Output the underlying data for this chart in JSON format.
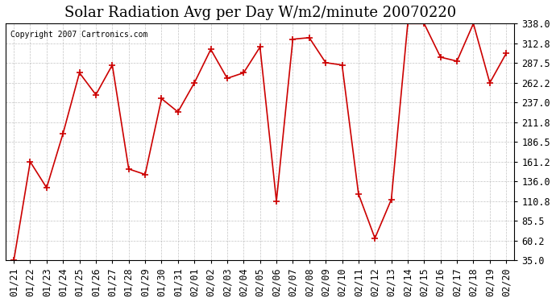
{
  "title": "Solar Radiation Avg per Day W/m2/minute 20070220",
  "copyright": "Copyright 2007 Cartronics.com",
  "x_labels": [
    "01/21",
    "01/22",
    "01/23",
    "01/24",
    "01/25",
    "01/26",
    "01/27",
    "01/28",
    "01/29",
    "01/30",
    "01/31",
    "02/01",
    "02/02",
    "02/03",
    "02/04",
    "02/05",
    "02/06",
    "02/07",
    "02/08",
    "02/09",
    "02/10",
    "02/11",
    "02/12",
    "02/13",
    "02/14",
    "02/15",
    "02/16",
    "02/17",
    "02/18",
    "02/19",
    "02/20"
  ],
  "y_values": [
    35.0,
    161.2,
    128.0,
    197.5,
    275.0,
    247.0,
    285.0,
    152.0,
    145.0,
    242.0,
    225.0,
    262.2,
    305.0,
    268.0,
    275.0,
    308.0,
    110.8,
    318.0,
    320.0,
    288.0,
    285.0,
    120.0,
    63.5,
    113.0,
    338.0,
    338.0,
    295.0,
    290.0,
    338.0,
    262.2,
    300.0
  ],
  "y_ticks": [
    35.0,
    60.2,
    85.5,
    110.8,
    136.0,
    161.2,
    186.5,
    211.8,
    237.0,
    262.2,
    287.5,
    312.8,
    338.0
  ],
  "line_color": "#cc0000",
  "marker": "+",
  "marker_size": 6,
  "background_color": "#ffffff",
  "plot_bg_color": "#ffffff",
  "grid_color": "#aaaaaa",
  "title_fontsize": 13,
  "tick_fontsize": 8.5,
  "ylim": [
    35.0,
    338.0
  ],
  "figsize": [
    6.9,
    3.75
  ],
  "dpi": 100
}
